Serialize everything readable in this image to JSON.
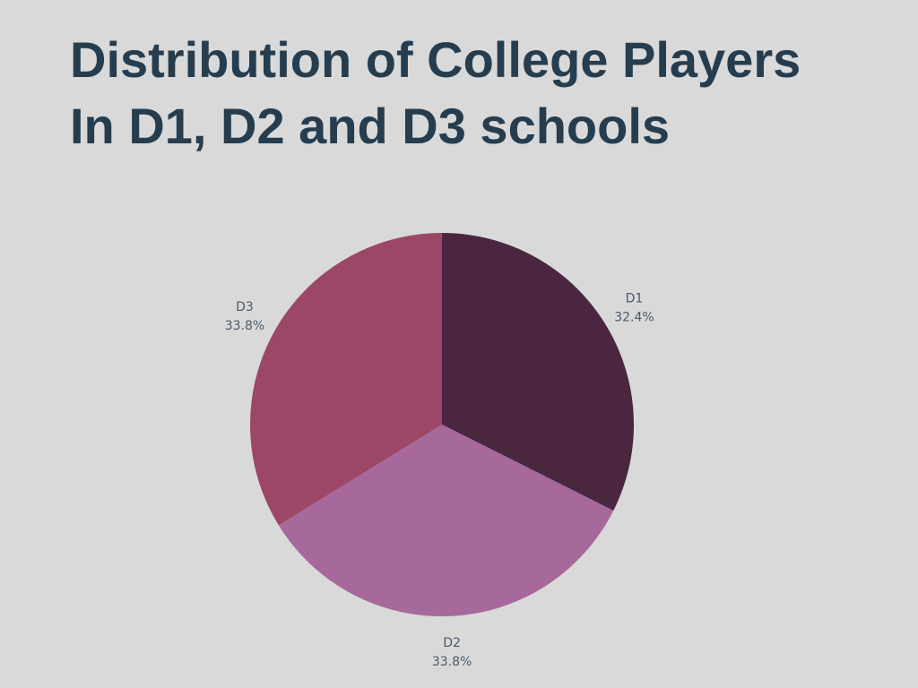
{
  "title_lines": [
    "Distribution of College Players",
    "In D1, D2 and D3 schools"
  ],
  "chart_data": {
    "type": "pie",
    "title": "Distribution of College Players In D1, D2 and D3 schools",
    "slices": [
      {
        "label": "D1",
        "value": 32.4,
        "display": "32.4%",
        "color": "#4a2640"
      },
      {
        "label": "D2",
        "value": 33.8,
        "display": "33.8%",
        "color": "#a7689b"
      },
      {
        "label": "D3",
        "value": 33.8,
        "display": "33.8%",
        "color": "#9c4767"
      }
    ],
    "start_position": "12 o'clock",
    "direction": "clockwise"
  }
}
